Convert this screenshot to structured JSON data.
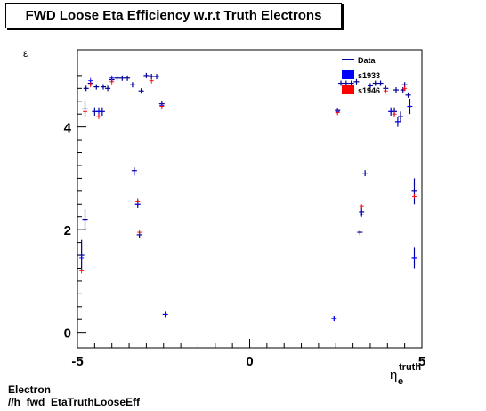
{
  "chart_data": {
    "type": "scatter",
    "title": "FWD Loose Eta Efficiency w.r.t Truth Electrons",
    "ylabel": "ε",
    "xlabel_main": "η",
    "xlabel_sub": "e",
    "xlabel_sup": "truth",
    "xlim": [
      -5,
      5
    ],
    "ylim": [
      -0.3,
      5.5
    ],
    "x_ticks": [
      "-5",
      "0",
      "5"
    ],
    "y_ticks": [
      "0",
      "2",
      "4"
    ],
    "legend_placement": "top-right",
    "series": [
      {
        "name": "Data",
        "color": "#000099",
        "points": [
          {
            "x": -4.88,
            "y": 1.5,
            "err": 0.3
          },
          {
            "x": -4.78,
            "y": 2.2,
            "err": 0.2
          },
          {
            "x": -4.78,
            "y": 4.35,
            "err": 0.15
          },
          {
            "x": -4.75,
            "y": 4.75,
            "err": 0.05
          },
          {
            "x": -4.62,
            "y": 4.85,
            "err": 0.05
          },
          {
            "x": -4.5,
            "y": 4.3,
            "err": 0.08
          },
          {
            "x": -4.45,
            "y": 4.78,
            "err": 0.03
          },
          {
            "x": -4.38,
            "y": 4.3,
            "err": 0.08
          },
          {
            "x": -4.28,
            "y": 4.3,
            "err": 0.08
          },
          {
            "x": -4.25,
            "y": 4.78,
            "err": 0.03
          },
          {
            "x": -4.12,
            "y": 4.75,
            "err": 0.05
          },
          {
            "x": -4.0,
            "y": 4.92,
            "err": 0.03
          },
          {
            "x": -3.85,
            "y": 4.95,
            "err": 0.03
          },
          {
            "x": -3.7,
            "y": 4.95,
            "err": 0.03
          },
          {
            "x": -3.55,
            "y": 4.95,
            "err": 0.03
          },
          {
            "x": -3.4,
            "y": 4.82,
            "err": 0.03
          },
          {
            "x": -3.35,
            "y": 3.15,
            "err": 0.06
          },
          {
            "x": -3.25,
            "y": 2.5,
            "err": 0.08
          },
          {
            "x": -3.2,
            "y": 1.9,
            "err": 0.06
          },
          {
            "x": -3.15,
            "y": 4.7,
            "err": 0.05
          },
          {
            "x": -3.0,
            "y": 5.0,
            "err": 0.03
          },
          {
            "x": -2.85,
            "y": 4.98,
            "err": 0.03
          },
          {
            "x": -2.7,
            "y": 4.98,
            "err": 0.03
          },
          {
            "x": -2.55,
            "y": 4.45,
            "err": 0.04
          },
          {
            "x": -2.45,
            "y": 0.35,
            "err": 0.03
          },
          {
            "x": 2.45,
            "y": 0.27,
            "err": 0.02
          },
          {
            "x": 2.55,
            "y": 4.32,
            "err": 0.04
          },
          {
            "x": 2.65,
            "y": 4.85,
            "err": 0.03
          },
          {
            "x": 2.8,
            "y": 4.85,
            "err": 0.03
          },
          {
            "x": 2.95,
            "y": 4.85,
            "err": 0.03
          },
          {
            "x": 3.1,
            "y": 4.88,
            "err": 0.03
          },
          {
            "x": 3.2,
            "y": 1.95,
            "err": 0.05
          },
          {
            "x": 3.25,
            "y": 2.35,
            "err": 0.08
          },
          {
            "x": 3.35,
            "y": 3.1,
            "err": 0.06
          },
          {
            "x": 3.5,
            "y": 4.8,
            "err": 0.03
          },
          {
            "x": 3.65,
            "y": 4.85,
            "err": 0.03
          },
          {
            "x": 3.8,
            "y": 4.85,
            "err": 0.03
          },
          {
            "x": 3.95,
            "y": 4.75,
            "err": 0.03
          },
          {
            "x": 4.1,
            "y": 4.3,
            "err": 0.08
          },
          {
            "x": 4.2,
            "y": 4.3,
            "err": 0.08
          },
          {
            "x": 4.25,
            "y": 4.72,
            "err": 0.03
          },
          {
            "x": 4.3,
            "y": 4.1,
            "err": 0.1
          },
          {
            "x": 4.38,
            "y": 4.2,
            "err": 0.1
          },
          {
            "x": 4.45,
            "y": 4.72,
            "err": 0.03
          },
          {
            "x": 4.5,
            "y": 4.82,
            "err": 0.05
          },
          {
            "x": 4.6,
            "y": 4.62,
            "err": 0.05
          },
          {
            "x": 4.65,
            "y": 4.4,
            "err": 0.15
          },
          {
            "x": 4.78,
            "y": 2.75,
            "err": 0.25
          },
          {
            "x": 4.78,
            "y": 1.45,
            "err": 0.2
          }
        ]
      },
      {
        "name": "s1933",
        "color": "#0000ff",
        "points": [
          {
            "x": -4.88,
            "y": 1.45
          },
          {
            "x": -4.78,
            "y": 4.35
          },
          {
            "x": -4.62,
            "y": 4.9
          },
          {
            "x": -4.38,
            "y": 4.3
          },
          {
            "x": -4.0,
            "y": 4.95
          },
          {
            "x": -3.35,
            "y": 3.1
          },
          {
            "x": -3.25,
            "y": 2.5
          },
          {
            "x": -2.55,
            "y": 4.42
          },
          {
            "x": -2.45,
            "y": 0.35
          },
          {
            "x": 2.45,
            "y": 0.27
          },
          {
            "x": 2.55,
            "y": 4.3
          },
          {
            "x": 3.25,
            "y": 2.3
          },
          {
            "x": 4.1,
            "y": 4.3
          },
          {
            "x": 4.3,
            "y": 4.1
          },
          {
            "x": 4.65,
            "y": 4.4
          },
          {
            "x": 4.78,
            "y": 1.45
          }
        ]
      },
      {
        "name": "s1946",
        "color": "#ff0000",
        "points": [
          {
            "x": -4.88,
            "y": 1.2
          },
          {
            "x": -4.78,
            "y": 4.3
          },
          {
            "x": -4.62,
            "y": 4.82
          },
          {
            "x": -4.38,
            "y": 4.2
          },
          {
            "x": -4.0,
            "y": 4.88
          },
          {
            "x": -3.2,
            "y": 1.95
          },
          {
            "x": -3.25,
            "y": 2.55
          },
          {
            "x": -2.85,
            "y": 4.9
          },
          {
            "x": -2.55,
            "y": 4.4
          },
          {
            "x": 2.55,
            "y": 4.28
          },
          {
            "x": 3.25,
            "y": 2.45
          },
          {
            "x": 3.95,
            "y": 4.7
          },
          {
            "x": 4.2,
            "y": 4.25
          },
          {
            "x": 4.5,
            "y": 4.75
          },
          {
            "x": 4.78,
            "y": 2.65
          }
        ]
      }
    ]
  },
  "footer": {
    "line1": "Electron",
    "line2": "//h_fwd_EtaTruthLooseEff"
  }
}
